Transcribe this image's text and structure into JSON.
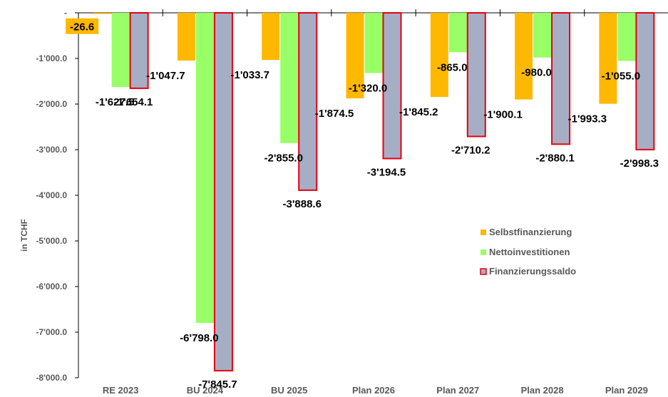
{
  "chart_data": {
    "type": "bar",
    "ylabel": "in TCHF",
    "ylim": [
      -8000,
      0
    ],
    "yticks": [
      0,
      -1000,
      -2000,
      -3000,
      -4000,
      -5000,
      -6000,
      -7000,
      -8000
    ],
    "ytick_labels": [
      "-",
      "-1'000.0",
      "-2'000.0",
      "-3'000.0",
      "-4'000.0",
      "-5'000.0",
      "-6'000.0",
      "-7'000.0",
      "-8'000.0"
    ],
    "categories": [
      "RE 2023",
      "BU 2024",
      "BU 2025",
      "Plan 2026",
      "Plan 2027",
      "Plan 2028",
      "Plan 2029"
    ],
    "legend_position": "right",
    "grid": false,
    "series": [
      {
        "name": "Selbstfinanzierung",
        "color": "#FFB800",
        "values": [
          -26.6,
          -1047.7,
          -1033.7,
          -1874.5,
          -1845.2,
          -1900.1,
          -1993.3
        ],
        "labels": [
          "-26.6",
          "-1'047.7",
          "-1'033.7",
          "-1'874.5",
          "-1'845.2",
          "-1'900.1",
          "-1'993.3"
        ]
      },
      {
        "name": "Nettoinvestitionen",
        "color": "#99FF66",
        "values": [
          -1627.5,
          -6798.0,
          -2855.0,
          -1320.0,
          -865.0,
          -980.0,
          -1055.0
        ],
        "labels": [
          "-1'627.5",
          "-6'798.0",
          "-2'855.0",
          "-1'320.0",
          "-865.0",
          "-980.0",
          "-1'055.0"
        ]
      },
      {
        "name": "Finanzierungssaldo",
        "color": "#A6AEC6",
        "border": "#E8000E",
        "values": [
          -1654.1,
          -7845.7,
          -3888.6,
          -3194.5,
          -2710.2,
          -2880.1,
          -2998.3
        ],
        "labels": [
          "-1'654.1",
          "-7'845.7",
          "-3'888.6",
          "-3'194.5",
          "-2'710.2",
          "-2'880.1",
          "-2'998.3"
        ]
      }
    ]
  }
}
